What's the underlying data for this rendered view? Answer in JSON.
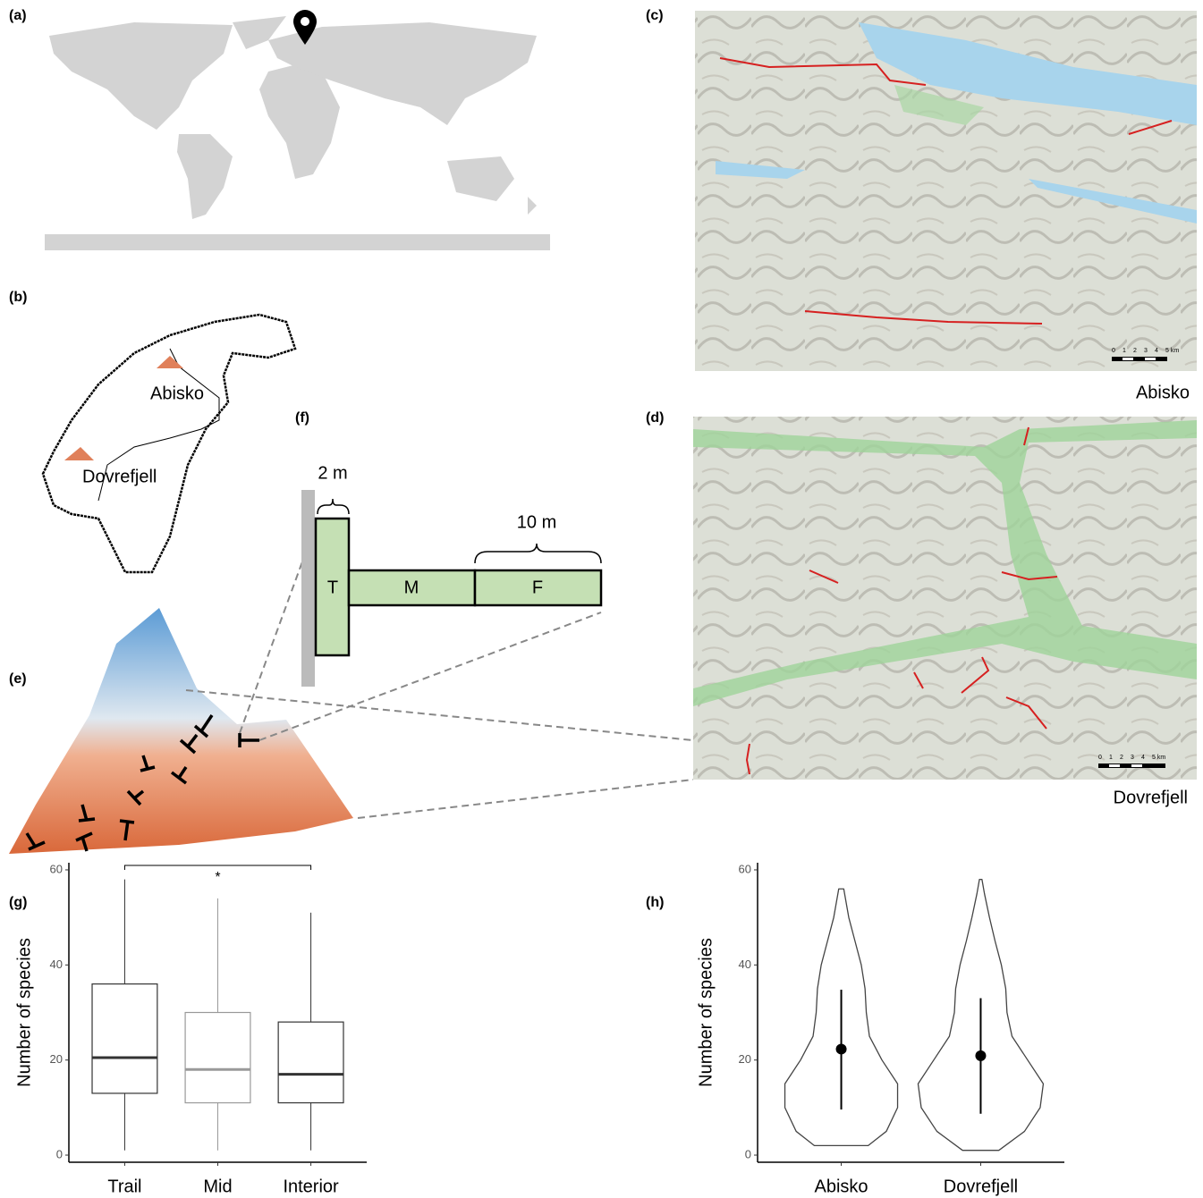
{
  "panel_labels": [
    "(a)",
    "(b)",
    "(c)",
    "(d)",
    "(e)",
    "(f)",
    "(g)",
    "(h)"
  ],
  "map_b": {
    "labels": [
      "Abisko",
      "Dovrefjell"
    ]
  },
  "map_c": {
    "caption": "Abisko",
    "scale": [
      "0",
      "1",
      "2",
      "3",
      "4",
      "5 km"
    ]
  },
  "map_d": {
    "caption": "Dovrefjell",
    "scale": [
      "0",
      "1",
      "2",
      "3",
      "4",
      "5 km"
    ]
  },
  "diagram_f": {
    "width": "2 m",
    "length": "10 m",
    "zones": [
      "T",
      "M",
      "F"
    ]
  },
  "chart_data": [
    {
      "type": "box",
      "categories": [
        "Trail",
        "Mid",
        "Interior"
      ],
      "ylabel": "Number of species",
      "min": [
        1,
        1,
        1
      ],
      "q1": [
        13,
        11,
        11
      ],
      "median": [
        20.5,
        18,
        17
      ],
      "q3": [
        36,
        30,
        28
      ],
      "max": [
        58,
        54,
        51
      ],
      "colors": [
        "#333333",
        "#999999",
        "#333333"
      ],
      "annotation": "*",
      "ylim": [
        -1.5,
        61.5
      ],
      "yticks": [
        0,
        20,
        40,
        60
      ]
    },
    {
      "type": "violin",
      "categories": [
        "Abisko",
        "Dovrefjell"
      ],
      "ylabel": "Number of species",
      "mean": [
        22.3,
        20.9
      ],
      "lower": [
        9.6,
        8.7
      ],
      "upper": [
        34.8,
        33
      ],
      "violins": [
        {
          "y": [
            2,
            5,
            10,
            15,
            20,
            25,
            30,
            35,
            40,
            45,
            50,
            56
          ],
          "density": [
            0.43,
            0.72,
            0.9,
            0.9,
            0.65,
            0.45,
            0.4,
            0.38,
            0.32,
            0.22,
            0.12,
            0.04
          ]
        },
        {
          "y": [
            1,
            5,
            10,
            15,
            20,
            25,
            30,
            35,
            40,
            45,
            50,
            55,
            58
          ],
          "density": [
            0.29,
            0.7,
            0.95,
            1.0,
            0.75,
            0.5,
            0.42,
            0.4,
            0.33,
            0.23,
            0.14,
            0.06,
            0.02
          ]
        }
      ],
      "color": "#444444",
      "ylim": [
        -1.5,
        61.5
      ],
      "yticks": [
        0,
        20,
        40,
        60
      ]
    }
  ]
}
